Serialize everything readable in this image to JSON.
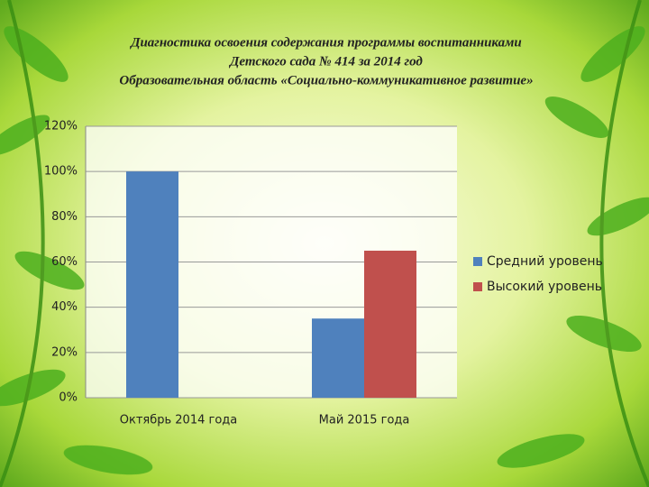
{
  "chart_data": {
    "type": "bar",
    "title": [
      "Диагностика освоения содержания программы воспитанниками",
      "Детского сада № 414 за 2014 год",
      "Образовательная область «Социально-коммуникативное развитие»"
    ],
    "categories": [
      "Октябрь 2014 года",
      "Май 2015 года"
    ],
    "series": [
      {
        "name": "Средний уровень",
        "color": "#4f81bd",
        "values": [
          100,
          35
        ]
      },
      {
        "name": "Высокий уровень",
        "color": "#c0504d",
        "values": [
          0,
          65
        ]
      }
    ],
    "ylim": [
      0,
      120
    ],
    "yticks": [
      {
        "value": 0,
        "label": "0%"
      },
      {
        "value": 20,
        "label": "20%"
      },
      {
        "value": 40,
        "label": "40%"
      },
      {
        "value": 60,
        "label": "60%"
      },
      {
        "value": 80,
        "label": "80%"
      },
      {
        "value": 100,
        "label": "100%"
      },
      {
        "value": 120,
        "label": "120%"
      }
    ],
    "grid": true,
    "legend": "right"
  }
}
